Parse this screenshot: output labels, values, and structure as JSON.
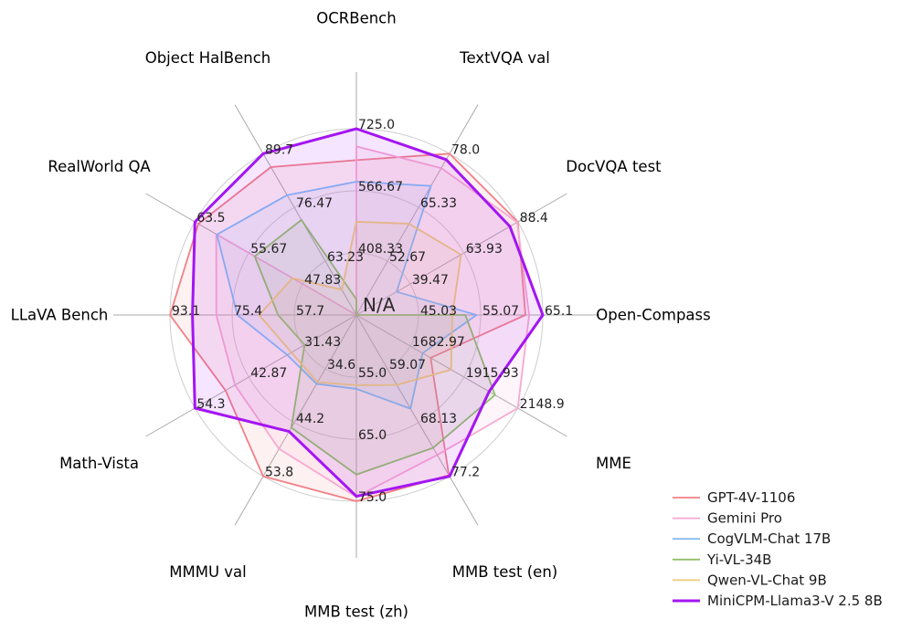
{
  "chart_data": {
    "type": "radar",
    "title": "",
    "background": "#ffffff",
    "grid": true,
    "grid_ring_color": "#cdcdcd",
    "grid_spoke_color": "#aaaaaa",
    "num_grid_rings": 3,
    "center_label": "N/A",
    "legend_position": "lower right",
    "axes": [
      {
        "label": "OCRBench",
        "min": 250,
        "max": 725,
        "ticks": [
          "725.0",
          "566.67",
          "408.33"
        ]
      },
      {
        "label": "TextVQA val",
        "min": 40,
        "max": 78,
        "ticks": [
          "78.0",
          "65.33",
          "52.67"
        ]
      },
      {
        "label": "DocVQA test",
        "min": 15,
        "max": 88.4,
        "ticks": [
          "88.4",
          "63.93",
          "39.47"
        ]
      },
      {
        "label": "Open-Compass",
        "min": 35,
        "max": 65.1,
        "ticks": [
          "65.1",
          "55.07",
          "45.03"
        ]
      },
      {
        "label": "MME",
        "min": 1450,
        "max": 2148.9,
        "ticks": [
          "2148.9",
          "1915.93",
          "1682.97"
        ]
      },
      {
        "label": "MMB test (en)",
        "min": 50,
        "max": 77.2,
        "ticks": [
          "77.2",
          "68.13",
          "59.07"
        ]
      },
      {
        "label": "MMB test (zh)",
        "min": 45,
        "max": 75.0,
        "ticks": [
          "75.0",
          "65.0",
          "55.0"
        ]
      },
      {
        "label": "MMMU val",
        "min": 25,
        "max": 53.8,
        "ticks": [
          "53.8",
          "44.2",
          "34.6"
        ]
      },
      {
        "label": "Math-Vista",
        "min": 20,
        "max": 54.3,
        "ticks": [
          "54.3",
          "42.87",
          "31.43"
        ]
      },
      {
        "label": "LLaVA Bench",
        "min": 40,
        "max": 93.1,
        "ticks": [
          "93.1",
          "75.4",
          "57.7"
        ]
      },
      {
        "label": "RealWorld QA",
        "min": 40,
        "max": 63.5,
        "ticks": [
          "63.5",
          "55.67",
          "47.83"
        ]
      },
      {
        "label": "Object HalBench",
        "min": 50,
        "max": 89.7,
        "ticks": [
          "89.7",
          "76.47",
          "63.23"
        ]
      }
    ],
    "series": [
      {
        "name": "GPT-4V-1106",
        "color": "#F28086",
        "line_width": 1.8,
        "values": [
          645,
          78.0,
          88.4,
          62.3,
          1771.5,
          77.0,
          75.0,
          53.8,
          47.8,
          93.1,
          63.0,
          86.4
        ]
      },
      {
        "name": "Gemini Pro",
        "color": "#F8A8D0",
        "line_width": 1.8,
        "values": [
          680,
          74.6,
          88.1,
          62.9,
          2148.9,
          73.6,
          74.3,
          48.9,
          45.8,
          79.9,
          60.4,
          null
        ]
      },
      {
        "name": "CogVLM-Chat 17B",
        "color": "#85BCF2",
        "line_width": 1.8,
        "values": [
          590,
          70.4,
          33.3,
          54.4,
          1736.6,
          65.8,
          56.9,
          37.3,
          34.7,
          73.9,
          60.3,
          79.5
        ]
      },
      {
        "name": "Yi-VL-34B",
        "color": "#92C06A",
        "line_width": 1.8,
        "values": [
          290,
          null,
          null,
          52.6,
          2050.2,
          72.4,
          70.7,
          45.1,
          31.0,
          62.3,
          54.8,
          73.4
        ]
      },
      {
        "name": "Qwen-VL-Chat 9B",
        "color": "#ECCA7B",
        "line_width": 1.8,
        "values": [
          488,
          61.5,
          62.6,
          50.5,
          1860.0,
          61.8,
          56.3,
          37.0,
          33.8,
          67.7,
          49.3,
          56.2
        ]
      },
      {
        "name": "MiniCPM-Llama3-V 2.5 8B",
        "color": "#A415F2",
        "line_width": 3,
        "values": [
          725,
          76.6,
          84.8,
          65.1,
          2024.6,
          77.2,
          74.2,
          45.8,
          54.3,
          86.7,
          63.5,
          89.7
        ]
      }
    ],
    "fill_opacity": 0.11
  }
}
